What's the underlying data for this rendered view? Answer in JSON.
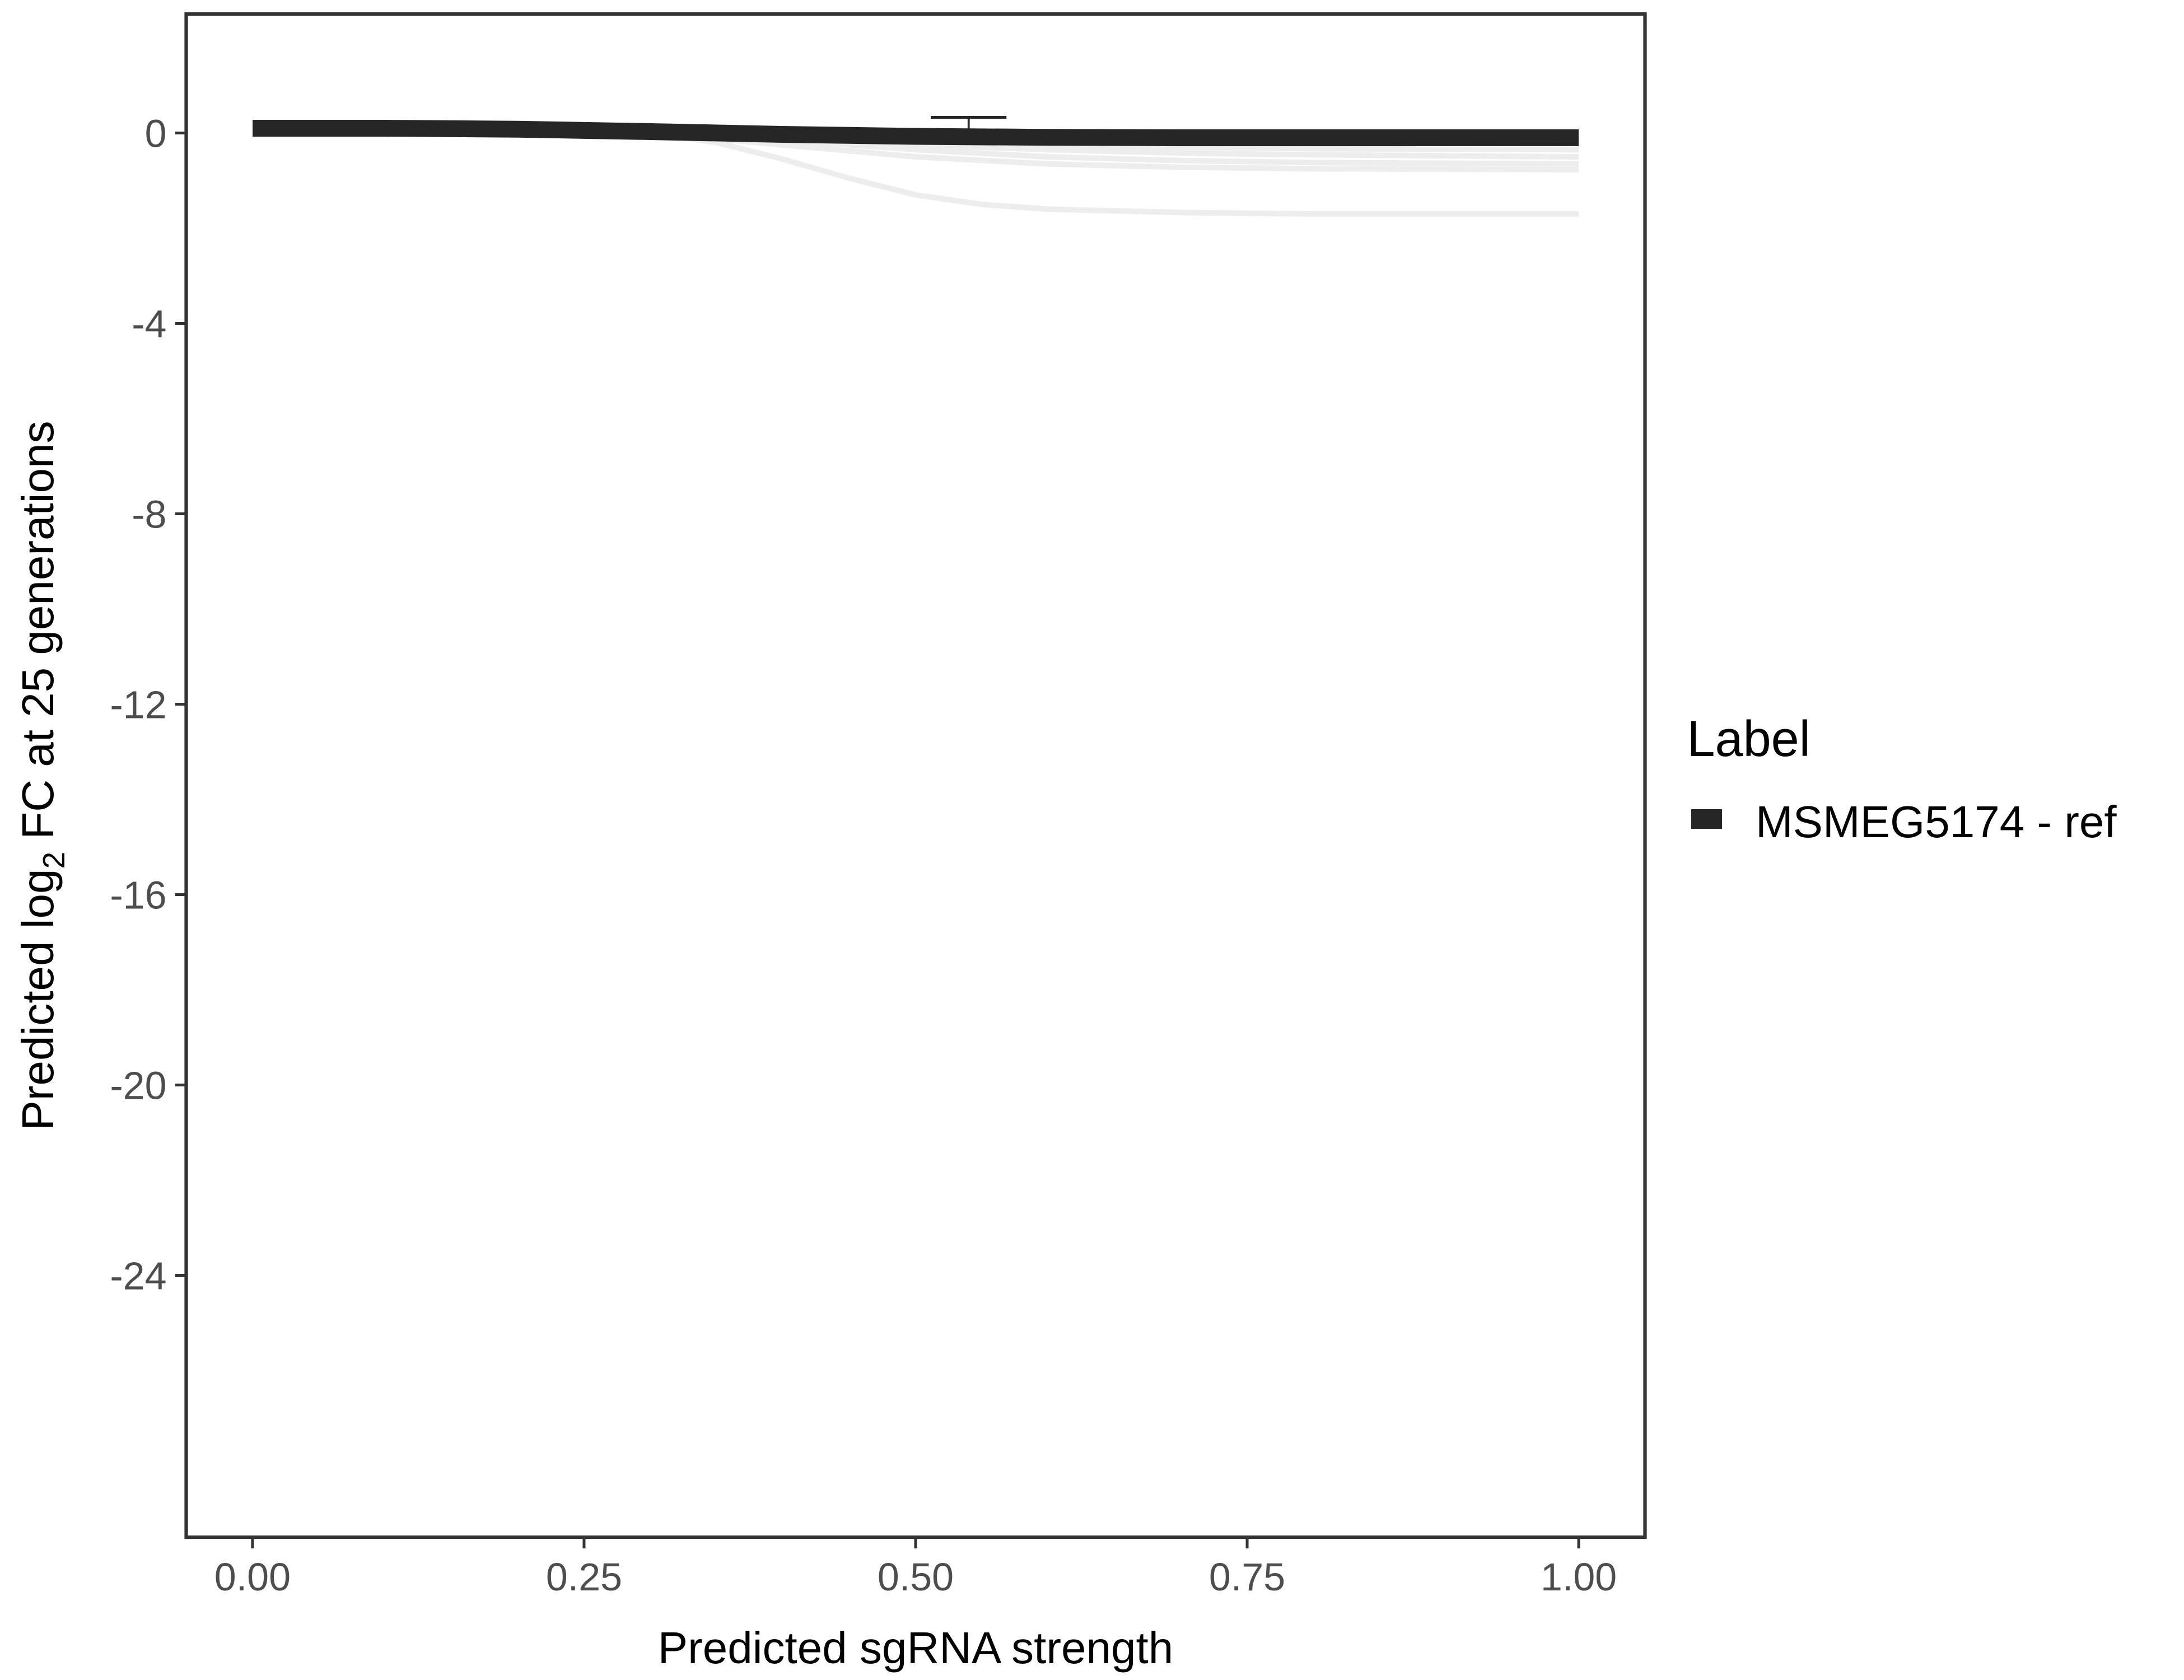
{
  "chart_data": {
    "type": "line",
    "xlabel": "Predicted sgRNA strength",
    "ylabel_prefix": "Predicted  log",
    "ylabel_sub": "2",
    "ylabel_suffix": " FC at 25 generations",
    "xlim": [
      -0.05,
      1.05
    ],
    "ylim": [
      -29.5,
      2.5
    ],
    "x_ticks": [
      0,
      0.25,
      0.5,
      0.75,
      1
    ],
    "x_tick_labels": [
      "0.00",
      "0.25",
      "0.50",
      "0.75",
      "1.00"
    ],
    "y_ticks": [
      0,
      -4,
      -8,
      -12,
      -16,
      -20,
      -24
    ],
    "y_tick_labels": [
      "0",
      "-4",
      "-8",
      "-12",
      "-16",
      "-20",
      "-24"
    ],
    "grid": false,
    "legend": {
      "title": "Label",
      "position": "right",
      "entries": [
        {
          "label": "MSMEG5174 - ref",
          "color": "#262626"
        }
      ]
    },
    "series": [
      {
        "name": "MSMEG5174 - ref",
        "color": "#262626",
        "x": [
          0,
          0.1,
          0.2,
          0.3,
          0.4,
          0.5,
          0.6,
          0.7,
          0.8,
          0.9,
          1.0
        ],
        "y": [
          0.1,
          0.1,
          0.08,
          0.03,
          -0.03,
          -0.07,
          -0.09,
          -0.1,
          -0.1,
          -0.1,
          -0.1
        ]
      }
    ],
    "posterior_draws": [
      {
        "x": [
          0,
          0.3,
          0.35,
          0.4,
          0.45,
          0.5,
          0.55,
          0.6,
          0.7,
          0.8,
          1.0
        ],
        "y": [
          0.05,
          0.0,
          -0.2,
          -0.55,
          -0.95,
          -1.3,
          -1.5,
          -1.6,
          -1.67,
          -1.7,
          -1.7
        ]
      },
      {
        "x": [
          0,
          0.3,
          0.4,
          0.5,
          0.6,
          0.7,
          0.8,
          1.0
        ],
        "y": [
          0.05,
          0.0,
          -0.25,
          -0.5,
          -0.65,
          -0.72,
          -0.75,
          -0.77
        ]
      },
      {
        "x": [
          0,
          0.3,
          0.4,
          0.5,
          0.6,
          0.7,
          0.8,
          1.0
        ],
        "y": [
          0.05,
          0.02,
          -0.15,
          -0.35,
          -0.5,
          -0.58,
          -0.62,
          -0.65
        ]
      },
      {
        "x": [
          0,
          0.3,
          0.4,
          0.5,
          0.6,
          0.7,
          0.8,
          1.0
        ],
        "y": [
          0.05,
          0.02,
          -0.1,
          -0.25,
          -0.35,
          -0.42,
          -0.46,
          -0.5
        ]
      },
      {
        "x": [
          0,
          0.3,
          0.4,
          0.5,
          0.6,
          0.7,
          0.8,
          1.0
        ],
        "y": [
          0.06,
          0.03,
          -0.06,
          -0.16,
          -0.24,
          -0.3,
          -0.33,
          -0.35
        ]
      }
    ],
    "error_bars": [
      {
        "x": 0.39,
        "ymin": -0.08,
        "ymax": 0.08
      },
      {
        "x": 0.455,
        "ymin": -0.15,
        "ymax": 0.05
      },
      {
        "x": 0.54,
        "ymin": -0.05,
        "ymax": 0.33
      },
      {
        "x": 0.62,
        "ymin": -0.22,
        "ymax": 0.0
      }
    ]
  }
}
